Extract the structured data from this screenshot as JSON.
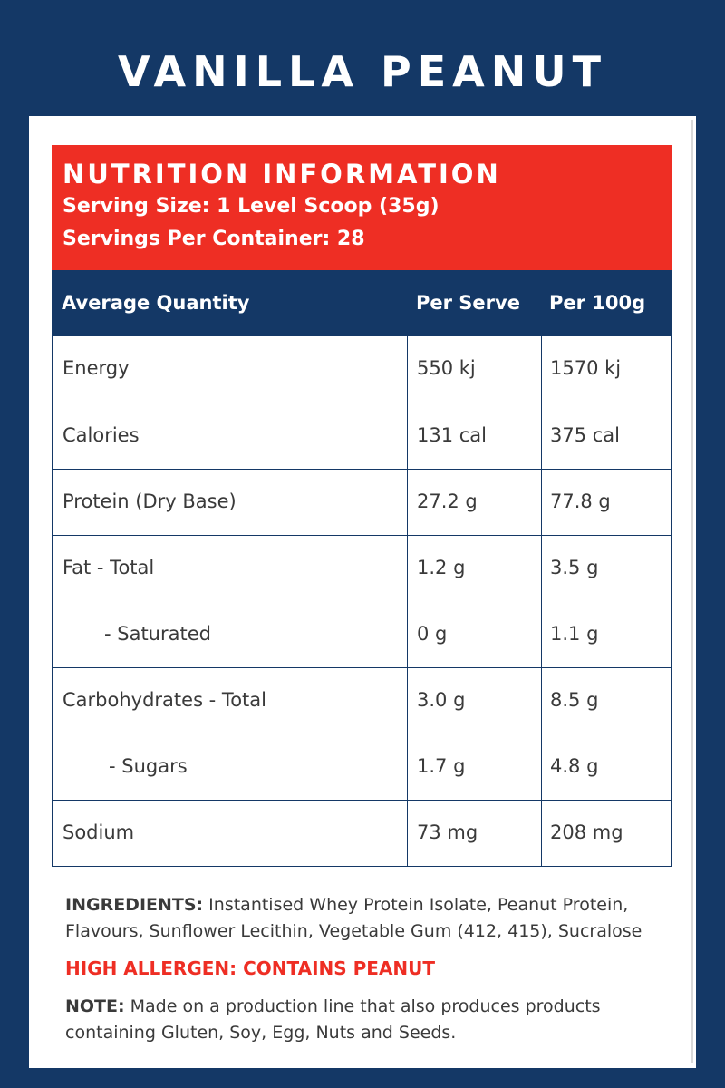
{
  "product_title": "VANILLA PEANUT",
  "nutrition": {
    "heading": "NUTRITION INFORMATION",
    "serving_size": "Serving Size: 1 Level Scoop (35g)",
    "servings_per_container": "Servings Per Container: 28"
  },
  "columns": {
    "quantity": "Average Quantity",
    "per_serve": "Per Serve",
    "per_100g": "Per 100g"
  },
  "rows": [
    {
      "label": "Energy",
      "per_serve": "550 kj",
      "per_100g": "1570 kj"
    },
    {
      "label": "Calories",
      "per_serve": "131 cal",
      "per_100g": "375 cal"
    },
    {
      "label": "Protein (Dry Base)",
      "per_serve": "27.2 g",
      "per_100g": "77.8 g"
    },
    {
      "label": "Fat - Total",
      "per_serve": "1.2 g",
      "per_100g": "3.5 g",
      "sub_label": "- Saturated",
      "sub_per_serve": "0 g",
      "sub_per_100g": "1.1 g"
    },
    {
      "label": "Carbohydrates - Total",
      "per_serve": "3.0 g",
      "per_100g": "8.5 g",
      "sub_label": "- Sugars",
      "sub_per_serve": "1.7 g",
      "sub_per_100g": "4.8 g"
    },
    {
      "label": "Sodium",
      "per_serve": "73 mg",
      "per_100g": "208 mg"
    }
  ],
  "ingredients": {
    "label": "INGREDIENTS:",
    "text": " Instantised Whey Protein Isolate, Peanut Protein, Flavours, Sunflower Lecithin, Vegetable Gum (412, 415), Sucralose"
  },
  "allergen": "HIGH ALLERGEN: CONTAINS PEANUT",
  "note": {
    "label": "NOTE:",
    "text": " Made on a production line that also produces products containing Gluten, Soy, Egg, Nuts and Seeds."
  },
  "colors": {
    "navy": "#143866",
    "red": "#ee2e24",
    "text": "#3a3a3a"
  }
}
